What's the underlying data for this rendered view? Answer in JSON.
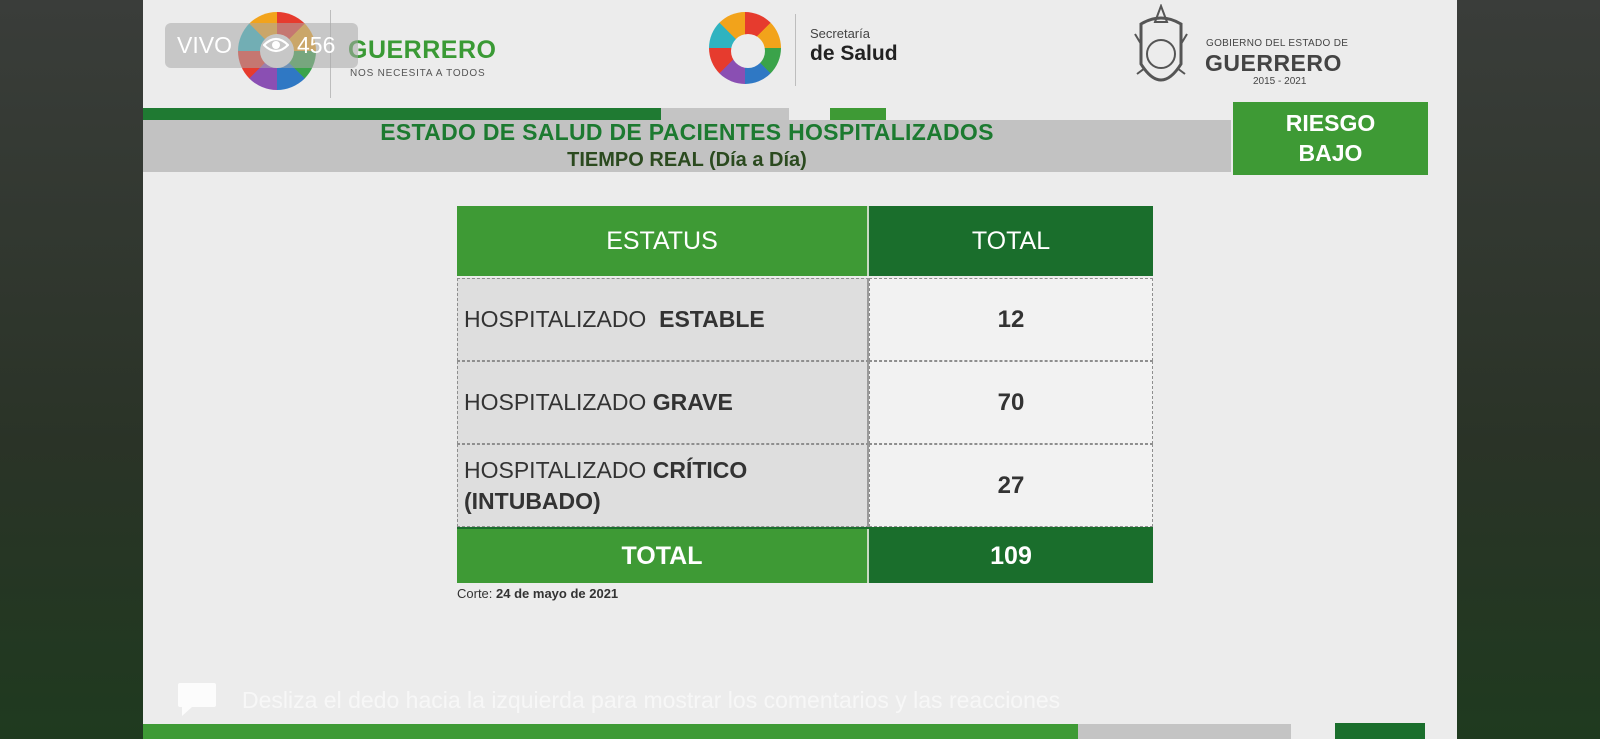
{
  "live": {
    "label": "VIVO",
    "viewers": "456"
  },
  "logos": {
    "left": {
      "brand": "GUERRERO",
      "tagline": "NOS NECESITA A TODOS"
    },
    "middle": {
      "line1": "Secretaría",
      "line2": "de Salud"
    },
    "right": {
      "line1": "GOBIERNO DEL ESTADO DE",
      "line2": "GUERRERO",
      "years": "2015 - 2021"
    }
  },
  "header": {
    "title": "ESTADO DE SALUD DE PACIENTES HOSPITALIZADOS",
    "subtitle": "TIEMPO REAL (Día a Día)",
    "risk": {
      "line1": "RIESGO",
      "line2": "BAJO"
    }
  },
  "table": {
    "col_status": "ESTATUS",
    "col_total": "TOTAL",
    "rows": [
      {
        "prefix": "HOSPITALIZADO",
        "status": "ESTABLE",
        "total": "12"
      },
      {
        "prefix": "HOSPITALIZADO",
        "status": "GRAVE",
        "total": "70"
      },
      {
        "prefix": "HOSPITALIZADO",
        "status": "CRÍTICO",
        "status2": "(INTUBADO)",
        "total": "27"
      }
    ],
    "total_label": "TOTAL",
    "total_value": "109"
  },
  "corte": {
    "label": "Corte:",
    "date": "24 de mayo de 2021"
  },
  "hint": "Desliza el dedo hacia la izquierda para mostrar los comentarios y las reacciones",
  "colors": {
    "green": "#3e9a35",
    "dark_green": "#1a6e2c",
    "gray": "#c2c2c2"
  }
}
